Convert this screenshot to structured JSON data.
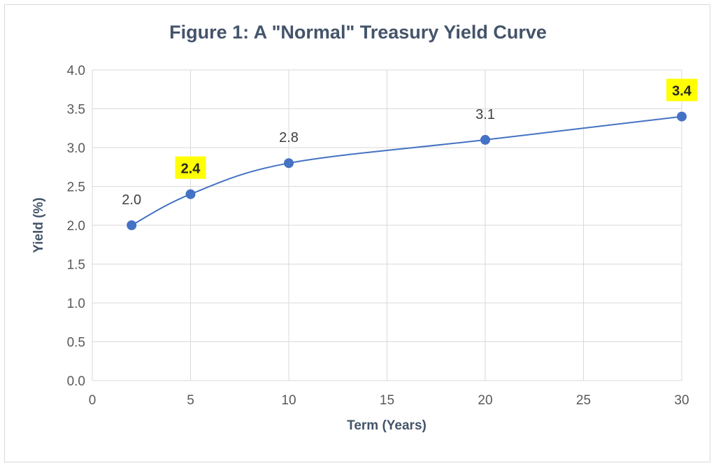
{
  "chart_data": {
    "type": "line",
    "title": "Figure 1: A \"Normal\" Treasury Yield Curve",
    "xlabel": "Term (Years)",
    "ylabel": "Yield (%)",
    "xlim": [
      0,
      30
    ],
    "ylim": [
      0,
      4
    ],
    "x_ticks": [
      "0",
      "5",
      "10",
      "15",
      "20",
      "25",
      "30"
    ],
    "y_ticks": [
      "0.0",
      "0.5",
      "1.0",
      "1.5",
      "2.0",
      "2.5",
      "3.0",
      "3.5",
      "4.0"
    ],
    "grid": true,
    "smooth": true,
    "series": [
      {
        "x": [
          2,
          5,
          10,
          20,
          30
        ],
        "y": [
          2.0,
          2.4,
          2.8,
          3.1,
          3.4
        ],
        "labels": [
          "2.0",
          "2.4",
          "2.8",
          "3.1",
          "3.4"
        ],
        "highlighted": [
          false,
          true,
          false,
          false,
          true
        ]
      }
    ],
    "colors": {
      "line": "#4472c4",
      "marker": "#4472c4",
      "highlight": "#ffff00",
      "grid": "#d9d9d9",
      "title": "#44546a"
    }
  }
}
